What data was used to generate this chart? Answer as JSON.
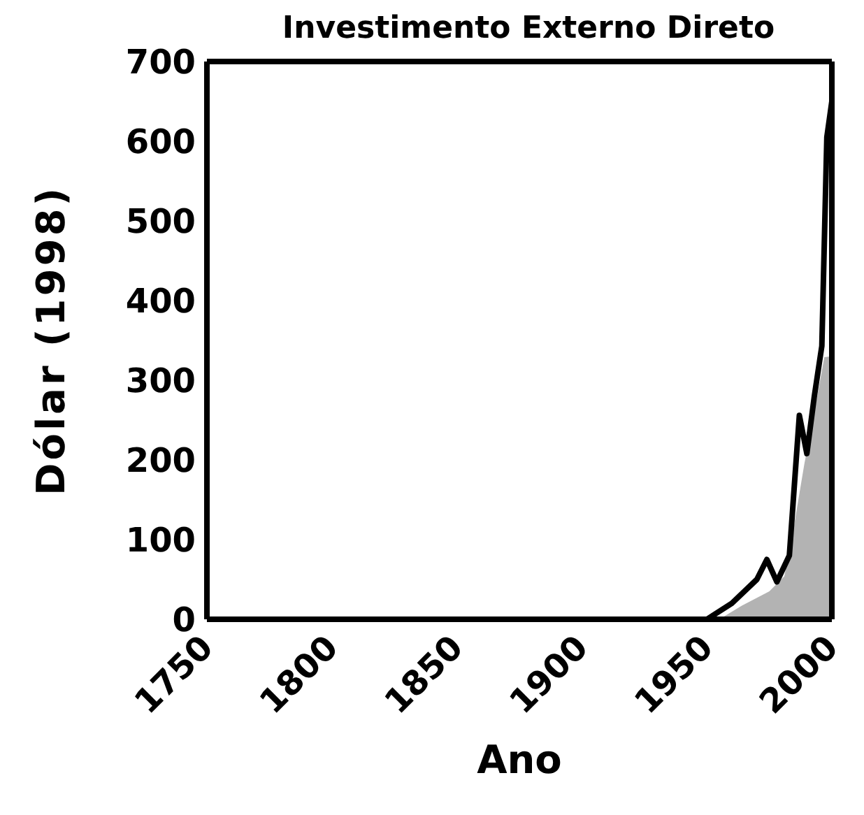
{
  "chart_data": {
    "type": "line",
    "title": "Investimento Externo Direto",
    "xlabel": "Ano",
    "ylabel": "Dólar (1998)",
    "series": [
      {
        "type": "area",
        "color": "#b3b3b3",
        "x": [
          1955,
          1964,
          1975,
          1981,
          1985,
          1989,
          1993,
          1997,
          2000
        ],
        "values": [
          0,
          17,
          35,
          54,
          120,
          195,
          260,
          329,
          330
        ]
      },
      {
        "color": "#000000",
        "x": [
          1950,
          1960,
          1970,
          1974,
          1978,
          1983,
          1987,
          1990,
          1993,
          1996,
          1998,
          2000
        ],
        "values": [
          0,
          20,
          50,
          75,
          47,
          80,
          256,
          208,
          280,
          343,
          605,
          650
        ]
      }
    ],
    "xlim": [
      1750,
      2000
    ],
    "xticks": [
      1750,
      1800,
      1850,
      1900,
      1950,
      2000
    ],
    "ylim": [
      0,
      700
    ],
    "yticks": [
      0,
      100,
      200,
      300,
      400,
      500,
      600,
      700
    ],
    "legend": false
  }
}
